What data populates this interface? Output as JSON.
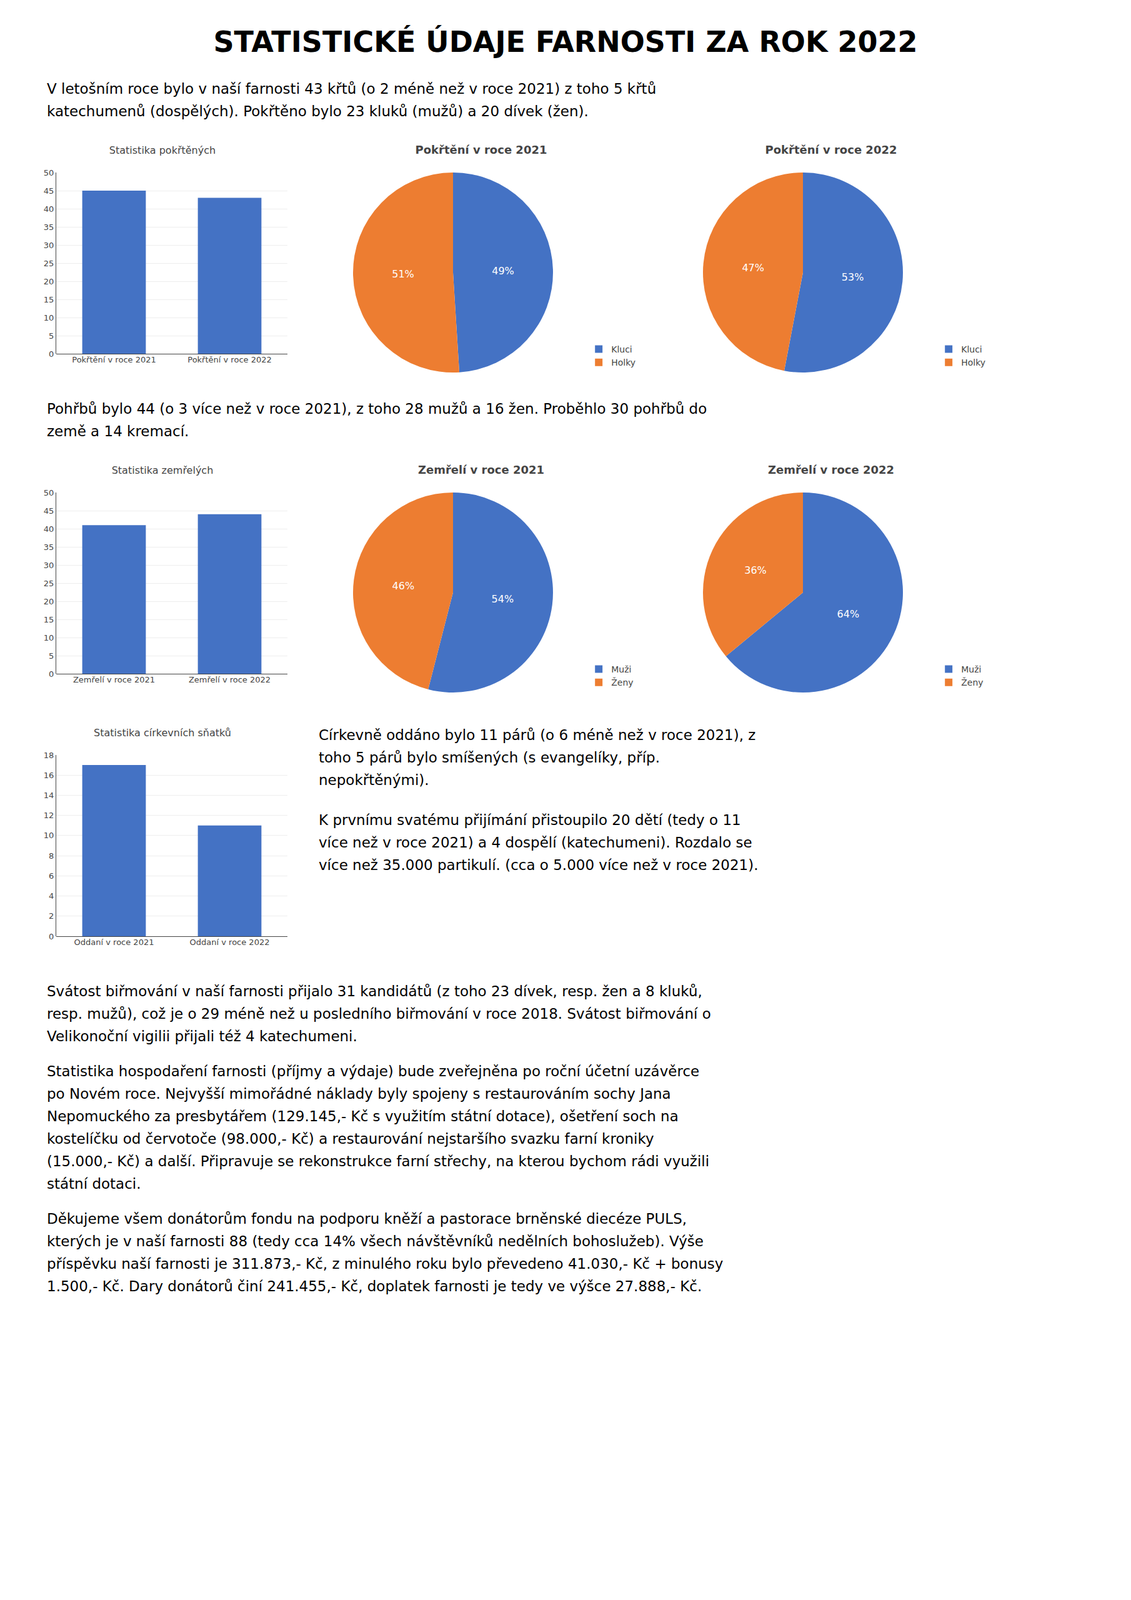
{
  "title": "STATISTICKÉ ÚDAJE FARNOSTI ZA ROK 2022",
  "annotations": [
    "V letošním roce bylo v naší farnosti 43 křtů (o 2 méně než v roce 2021) z toho 5 křtů\nkatechumenů (dospělých). Pokřtěno bylo 23 kluků (mužů) a 20 dívek (žen).",
    "Pohřbů bylo 44 (o 3 více než v roce 2021), z toho 28 mužů a 16 žen. Proběhlo 30 pohřbů do\nzemě a 14 kremací.",
    "Církevně oddáno bylo 11 párů (o 6 méně než v roce 2021), z\ntoho 5 párů bylo smíšených (s evangelíky, příp.\nnepokřtěnými).",
    "K prvnímu svatému přijímání přistoupilo 20 dětí (tedy o 11\nvíce než v roce 2021) a 4 dospělí (katechumeni). Rozdalo se\nvíce než 35.000 partikulí. (cca o 5.000 více než v roce 2021).",
    "Svátost biřmování v naší farnosti přijalo 31 kandidátů (z toho 23 dívek, resp. žen a 8 kluků,\nresp. mužů), což je o 29 méně než u posledního biřmování v roce 2018. Svátost biřmování o\nVelikonoční vigilii přijali též 4 katechumeni.",
    "Statistika hospodaření farnosti (příjmy a výdaje) bude zveřejněna po roční účetní uzávěrce\npo Novém roce. Nejvyšší mimořádné náklady byly spojeny s restaurováním sochy Jana\nNepomuckého za presbytářem (129.145,- Kč s využitím státní dotace), ošetření soch na\nkostelíčku od červotoče (98.000,- Kč) a restaurování nejstaršího svazku farní kroniky\n(15.000,- Kč) a další. Připravuje se rekonstrukce farní střechy, na kterou bychom rádi využili\nstátní dotaci.",
    "Děkujeme všem donátorům fondu na podporu kněží a pastorace brněnské diecéze PULS,\nkterých je v naší farnosti 88 (tedy cca 14% všech návštěvníků nedělních bohoslužeb). Výše\npříspěvku naší farnosti je 311.873,- Kč, z minulého roku bylo převedeno 41.030,- Kč + bonusy\n1.500,- Kč. Dary donátorů činí 241.455,- Kč, doplatek farnosti je tedy ve výšce 27.888,- Kč."
  ],
  "chart_data": [
    {
      "type": "bar",
      "title": "Statistika pokřtěných",
      "categories": [
        "Pokřtění v roce 2021",
        "Pokřtění v roce 2022"
      ],
      "values": [
        45,
        43
      ],
      "color": "#4472c4",
      "ylim": [
        0,
        50
      ],
      "yticks": [
        0,
        5,
        10,
        15,
        20,
        25,
        30,
        35,
        40,
        45,
        50
      ],
      "grid": true
    },
    {
      "type": "pie",
      "title": "Pokřtění v roce 2021",
      "categories": [
        "Kluci",
        "Holky"
      ],
      "values": [
        49,
        51
      ],
      "value_labels": [
        "49%",
        "51%"
      ],
      "colors": [
        "#4472c4",
        "#ed7d31"
      ],
      "data_labels": true,
      "legend": "lower right"
    },
    {
      "type": "pie",
      "title": "Pokřtění v roce 2022",
      "categories": [
        "Kluci",
        "Holky"
      ],
      "values": [
        53,
        47
      ],
      "value_labels": [
        "53%",
        "47%"
      ],
      "colors": [
        "#4472c4",
        "#ed7d31"
      ],
      "data_labels": true,
      "legend": "lower right"
    },
    {
      "type": "bar",
      "title": "Statistika zemřelých",
      "categories": [
        "Zemřelí v roce 2021",
        "Zemřelí v roce 2022"
      ],
      "values": [
        41,
        44
      ],
      "color": "#4472c4",
      "ylim": [
        0,
        50
      ],
      "yticks": [
        0,
        5,
        10,
        15,
        20,
        25,
        30,
        35,
        40,
        45,
        50
      ],
      "grid": true
    },
    {
      "type": "pie",
      "title": "Zemřelí v roce 2021",
      "categories": [
        "Muži",
        "Ženy"
      ],
      "values": [
        54,
        46
      ],
      "value_labels": [
        "54%",
        "46%"
      ],
      "colors": [
        "#4472c4",
        "#ed7d31"
      ],
      "data_labels": true,
      "legend": "lower right"
    },
    {
      "type": "pie",
      "title": "Zemřelí v roce 2022",
      "categories": [
        "Muži",
        "Ženy"
      ],
      "values": [
        64,
        36
      ],
      "value_labels": [
        "64%",
        "36%"
      ],
      "colors": [
        "#4472c4",
        "#ed7d31"
      ],
      "data_labels": true,
      "legend": "lower right"
    },
    {
      "type": "bar",
      "title": "Statistika církevních sňatků",
      "categories": [
        "Oddaní v roce 2021",
        "Oddaní v roce 2022"
      ],
      "values": [
        17,
        11
      ],
      "color": "#4472c4",
      "ylim": [
        0,
        18
      ],
      "yticks": [
        0,
        2,
        4,
        6,
        8,
        10,
        12,
        14,
        16,
        18
      ],
      "grid": true
    }
  ]
}
